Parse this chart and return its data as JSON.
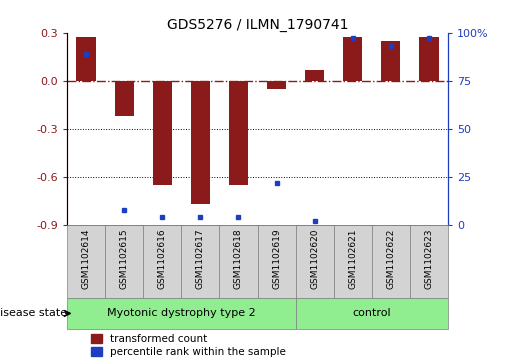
{
  "title": "GDS5276 / ILMN_1790741",
  "samples": [
    "GSM1102614",
    "GSM1102615",
    "GSM1102616",
    "GSM1102617",
    "GSM1102618",
    "GSM1102619",
    "GSM1102620",
    "GSM1102621",
    "GSM1102622",
    "GSM1102623"
  ],
  "red_values": [
    0.27,
    -0.22,
    -0.65,
    -0.77,
    -0.65,
    -0.05,
    0.07,
    0.27,
    0.25,
    0.27
  ],
  "blue_values": [
    89,
    8,
    4,
    4,
    4,
    22,
    2,
    97,
    93,
    97
  ],
  "groups": [
    {
      "label": "Myotonic dystrophy type 2",
      "start": 0,
      "end": 6,
      "color": "#90EE90"
    },
    {
      "label": "control",
      "start": 6,
      "end": 10,
      "color": "#90EE90"
    }
  ],
  "ylim_left": [
    -0.9,
    0.3
  ],
  "ylim_right": [
    0,
    100
  ],
  "yticks_left": [
    -0.9,
    -0.6,
    -0.3,
    0.0,
    0.3
  ],
  "yticks_right": [
    0,
    25,
    50,
    75,
    100
  ],
  "bar_width": 0.5,
  "red_color": "#8B1A1A",
  "blue_color": "#1E3EBF",
  "dot_line_y": [
    -0.3,
    -0.6
  ],
  "legend_labels": [
    "transformed count",
    "percentile rank within the sample"
  ],
  "disease_state_label": "disease state",
  "sample_box_color": "#D3D3D3",
  "title_fontsize": 10,
  "axis_fontsize": 8,
  "sample_fontsize": 6.5,
  "group_fontsize": 8,
  "legend_fontsize": 7.5
}
